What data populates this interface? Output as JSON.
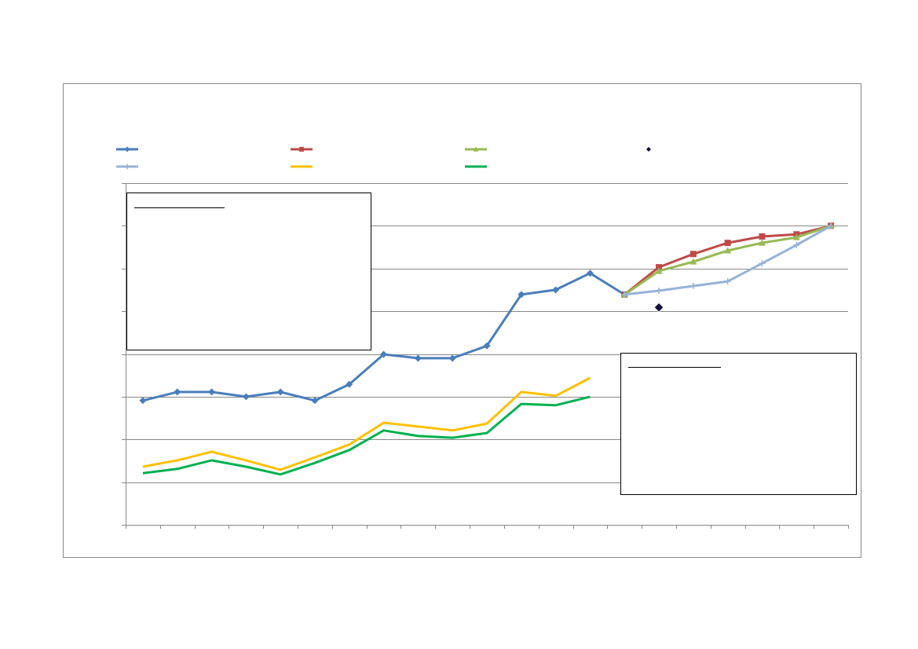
{
  "chart_data": {
    "type": "line",
    "categories": [
      null,
      null,
      null,
      null,
      null,
      null,
      null,
      null,
      null,
      null,
      null,
      null,
      null,
      null,
      null,
      null,
      null,
      null,
      null,
      null,
      null
    ],
    "ylim": [
      0,
      8
    ],
    "yticks": [
      0,
      1,
      2,
      3,
      4,
      5,
      6,
      7,
      8
    ],
    "grid": true,
    "series": [
      {
        "color": "#4a7ebb",
        "marker": "diamond",
        "line": true,
        "values": [
          2.91,
          3.11,
          3.11,
          3.0,
          3.11,
          2.91,
          3.29,
          3.99,
          3.9,
          3.9,
          4.19,
          5.39,
          5.5,
          5.89,
          5.39,
          null,
          null,
          null,
          null,
          null,
          null
        ]
      },
      {
        "color": "#be4b48",
        "marker": "square",
        "line": true,
        "values": [
          null,
          null,
          null,
          null,
          null,
          null,
          null,
          null,
          null,
          null,
          null,
          null,
          null,
          null,
          5.39,
          6.03,
          6.34,
          6.6,
          6.75,
          6.8,
          7.0
        ]
      },
      {
        "color": "#98b954",
        "marker": "triangle",
        "line": true,
        "values": [
          null,
          null,
          null,
          null,
          null,
          null,
          null,
          null,
          null,
          null,
          null,
          null,
          null,
          null,
          5.39,
          5.94,
          6.16,
          6.42,
          6.6,
          6.73,
          7.0
        ]
      },
      {
        "color": "#10103a",
        "marker": "diamond",
        "line": false,
        "values": [
          null,
          null,
          null,
          null,
          null,
          null,
          null,
          null,
          null,
          null,
          null,
          null,
          null,
          null,
          null,
          5.09,
          null,
          null,
          null,
          null,
          null
        ]
      },
      {
        "color": "#95b3d7",
        "marker": "plus",
        "line": true,
        "values": [
          null,
          null,
          null,
          null,
          null,
          null,
          null,
          null,
          null,
          null,
          null,
          null,
          null,
          null,
          5.39,
          5.48,
          5.59,
          5.7,
          6.12,
          6.55,
          7.0
        ]
      },
      {
        "color": "#ffc000",
        "marker": "none",
        "line": true,
        "values": [
          1.36,
          1.51,
          1.71,
          1.51,
          1.29,
          1.58,
          1.88,
          2.39,
          2.3,
          2.21,
          2.37,
          3.11,
          3.02,
          3.44,
          null,
          null,
          null,
          null,
          null,
          null,
          null
        ]
      },
      {
        "color": "#00b050",
        "marker": "none",
        "line": true,
        "values": [
          1.21,
          1.31,
          1.51,
          1.36,
          1.18,
          1.45,
          1.75,
          2.21,
          2.08,
          2.04,
          2.15,
          2.83,
          2.8,
          3.0,
          null,
          null,
          null,
          null,
          null,
          null,
          null
        ]
      }
    ]
  }
}
